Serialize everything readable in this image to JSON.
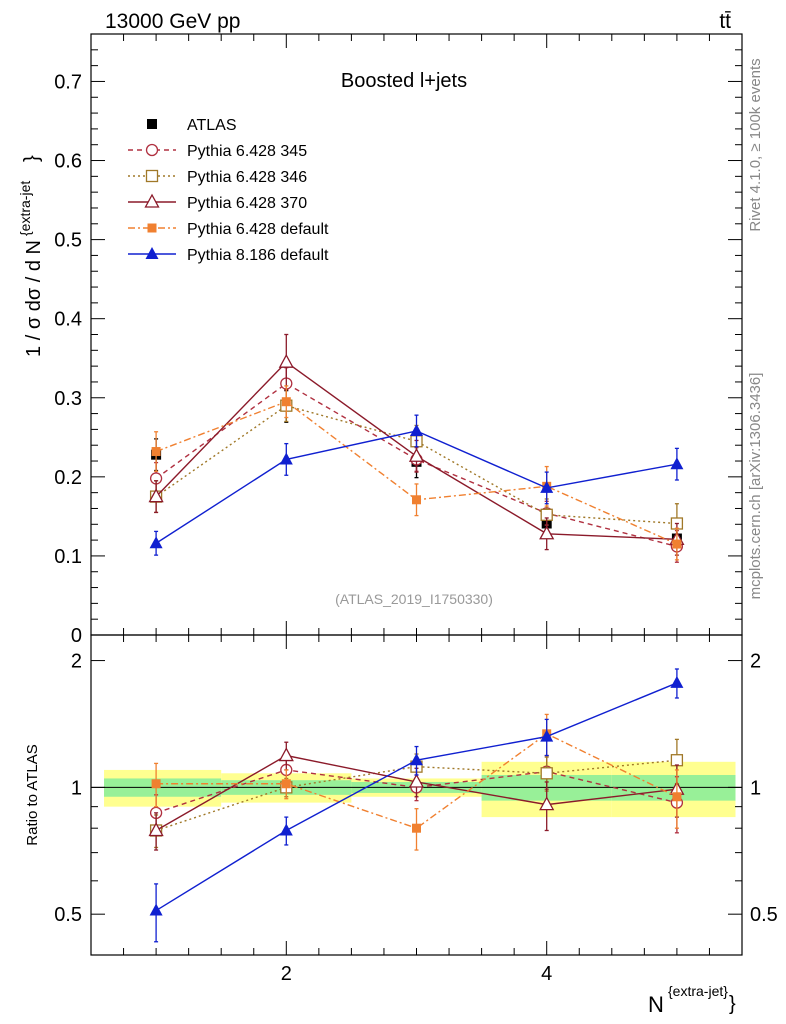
{
  "header": {
    "left": "13000 GeV pp",
    "right": "tt̄"
  },
  "side_labels": {
    "rivet": "Rivet 4.1.0, ≥ 100k events",
    "mcplots": "mcplots.cern.ch [arXiv:1306.3436]"
  },
  "chart_data": {
    "type": "line",
    "title": "Boosted l+jets",
    "watermark": "(ATLAS_2019_I1750330)",
    "xlabel_main": "N",
    "xlabel_sup": "{extra-jet}",
    "xlabel_tail": "}",
    "ylabel": "1 / σ dσ / d N",
    "ylabel_sup": "{extra-jet",
    "ylabel_tail": "}",
    "ratio_ylabel": "Ratio to ATLAS",
    "x": [
      1,
      2,
      3,
      4,
      5
    ],
    "xlim": [
      0.5,
      5.5
    ],
    "ylim": [
      0,
      0.76
    ],
    "ratio_ylim": [
      0.4,
      2.3
    ],
    "x_tick_labels": [
      "2",
      "4"
    ],
    "y_tick_labels": [
      "0",
      "0.1",
      "0.2",
      "0.3",
      "0.4",
      "0.5",
      "0.6",
      "0.7"
    ],
    "ratio_tick_labels": [
      "0.5",
      "1",
      "2"
    ],
    "data": {
      "name": "ATLAS",
      "values": [
        0.228,
        0.289,
        0.219,
        0.141,
        0.122
      ],
      "errors": [
        0.02,
        0.02,
        0.02,
        0.015,
        0.015
      ]
    },
    "band_inner": [
      0.05,
      0.04,
      0.03,
      0.07,
      0.07
    ],
    "band_outer": [
      0.1,
      0.08,
      0.05,
      0.15,
      0.15
    ],
    "series": [
      {
        "name": "Pythia 6.428 345",
        "color": "#b03040",
        "dash": "5,4",
        "marker": "circle-open",
        "values": [
          0.198,
          0.318,
          0.222,
          0.154,
          0.112
        ],
        "errors": [
          0.02,
          0.02,
          0.015,
          0.015,
          0.02
        ],
        "ratio": [
          0.87,
          1.1,
          1.0,
          1.09,
          0.92
        ],
        "ratio_err": [
          0.09,
          0.06,
          0.07,
          0.1,
          0.14
        ]
      },
      {
        "name": "Pythia 6.428 346",
        "color": "#a07828",
        "dash": "2,3",
        "marker": "square-open",
        "values": [
          0.175,
          0.29,
          0.245,
          0.152,
          0.141
        ],
        "errors": [
          0.02,
          0.02,
          0.02,
          0.02,
          0.025
        ],
        "ratio": [
          0.79,
          1.0,
          1.12,
          1.08,
          1.16
        ],
        "ratio_err": [
          0.07,
          0.05,
          0.08,
          0.1,
          0.14
        ]
      },
      {
        "name": "Pythia 6.428 370",
        "color": "#8b1a2a",
        "dash": "",
        "marker": "triangle-open",
        "values": [
          0.175,
          0.345,
          0.226,
          0.128,
          0.121
        ],
        "errors": [
          0.02,
          0.035,
          0.02,
          0.02,
          0.02
        ],
        "ratio": [
          0.79,
          1.19,
          1.03,
          0.91,
          0.99
        ],
        "ratio_err": [
          0.08,
          0.09,
          0.08,
          0.12,
          0.14
        ]
      },
      {
        "name": "Pythia 6.428 default",
        "color": "#f08030",
        "dash": "7,3,2,3",
        "marker": "square-filled",
        "values": [
          0.232,
          0.295,
          0.171,
          0.188,
          0.115
        ],
        "errors": [
          0.025,
          0.02,
          0.02,
          0.025,
          0.02
        ],
        "ratio": [
          1.02,
          1.02,
          0.8,
          1.34,
          0.95
        ],
        "ratio_err": [
          0.12,
          0.08,
          0.09,
          0.15,
          0.15
        ]
      },
      {
        "name": "Pythia 8.186 default",
        "color": "#1020d0",
        "dash": "",
        "marker": "triangle-filled",
        "values": [
          0.116,
          0.222,
          0.258,
          0.186,
          0.216
        ],
        "errors": [
          0.015,
          0.02,
          0.02,
          0.02,
          0.02
        ],
        "ratio": [
          0.51,
          0.79,
          1.16,
          1.32,
          1.77
        ],
        "ratio_err": [
          0.08,
          0.06,
          0.09,
          0.13,
          0.14
        ]
      }
    ]
  }
}
